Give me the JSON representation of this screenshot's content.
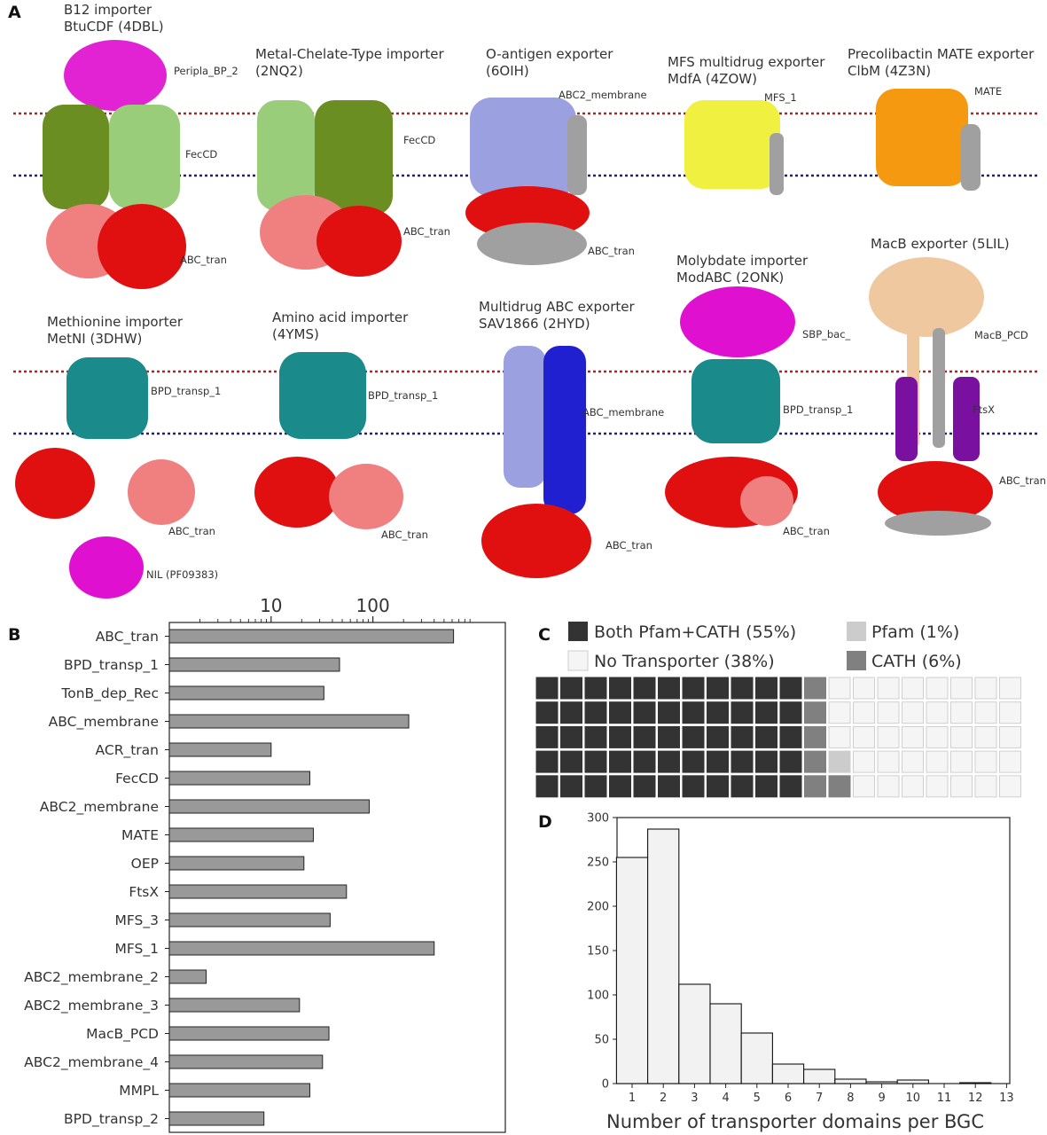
{
  "panels": {
    "a": "A",
    "b": "B",
    "c": "C",
    "d": "D"
  },
  "structures": [
    {
      "title": [
        "B12 importer",
        "BtuCDF (4DBL)"
      ],
      "domains": [
        "Peripla_BP_2",
        "FecCD",
        "ABC_tran"
      ]
    },
    {
      "title": [
        "Metal-Chelate-Type importer",
        "(2NQ2)"
      ],
      "domains": [
        "FecCD",
        "ABC_tran"
      ]
    },
    {
      "title": [
        "O-antigen exporter",
        " (6OIH)"
      ],
      "domains": [
        "ABC2_membrane",
        "ABC_tran"
      ]
    },
    {
      "title": [
        "MFS multidrug exporter",
        "MdfA (4ZOW)"
      ],
      "domains": [
        "MFS_1"
      ]
    },
    {
      "title": [
        "Precolibactin MATE exporter",
        "ClbM (4Z3N)"
      ],
      "domains": [
        "MATE"
      ]
    },
    {
      "title": [
        "Methionine importer",
        "MetNI (3DHW)"
      ],
      "domains": [
        "BPD_transp_1",
        "ABC_tran",
        "NIL (PF09383)"
      ]
    },
    {
      "title": [
        "Amino acid importer",
        " (4YMS)"
      ],
      "domains": [
        "BPD_transp_1",
        "ABC_tran"
      ]
    },
    {
      "title": [
        "Multidrug ABC exporter",
        "SAV1866 (2HYD)"
      ],
      "domains": [
        "ABC_membrane",
        "ABC_tran"
      ]
    },
    {
      "title": [
        "Molybdate importer",
        "ModABC (2ONK)"
      ],
      "domains": [
        "SBP_bac_",
        "BPD_transp_1",
        "ABC_tran"
      ]
    },
    {
      "title": [
        "MacB exporter  (5LIL)"
      ],
      "domains": [
        "MacB_PCD",
        "FtsX",
        "ABC_tran"
      ]
    }
  ],
  "colors": {
    "red_line": "#b22222",
    "blue_line": "#1a237e",
    "magenta": "#e010d0",
    "green": "#6b8e23",
    "lightgreen": "#9acd7a",
    "salmon": "#f08080",
    "red": "#e01010",
    "periwinkle": "#9aa0e0",
    "yellow": "#f0f040",
    "orange": "#f59a10",
    "teal": "#1a8a8a",
    "blue": "#2020d0",
    "purple": "#7a10a0",
    "wheat": "#f0c8a0",
    "grey": "#a0a0a0",
    "bar": "#999999",
    "hist": "#f2f2f2",
    "waffle_both": "#333333",
    "waffle_pfam": "#cccccc",
    "waffle_cath": "#808080",
    "waffle_none": "#f5f5f5"
  },
  "chart_data": [
    {
      "type": "bar",
      "orientation": "horizontal",
      "xscale": "log",
      "xticks": [
        "10",
        "100"
      ],
      "xlim": [
        1,
        2000
      ],
      "categories": [
        "ABC_tran",
        "BPD_transp_1",
        "TonB_dep_Rec",
        "ABC_membrane",
        "ACR_tran",
        "FecCD",
        "ABC2_membrane",
        "MATE",
        "OEP",
        "FtsX",
        "MFS_3",
        "MFS_1",
        "ABC2_membrane_2",
        "ABC2_membrane_3",
        "MacB_PCD",
        "ABC2_membrane_4",
        "MMPL",
        "BPD_transp_2"
      ],
      "values": [
        620,
        47,
        33,
        225,
        10,
        24,
        92,
        26,
        21,
        55,
        38,
        400,
        2.3,
        19,
        37,
        32,
        24,
        8.5
      ]
    },
    {
      "type": "waffle",
      "legend": [
        {
          "key": "both",
          "label": "Both Pfam+CATH (55%)"
        },
        {
          "key": "pfam",
          "label": "Pfam (1%)"
        },
        {
          "key": "none",
          "label": "No Transporter (38%)"
        },
        {
          "key": "cath",
          "label": "CATH (6%)"
        }
      ],
      "rows": 5,
      "cols": 20,
      "counts": {
        "both": 55,
        "pfam": 1,
        "cath": 6,
        "none": 38
      }
    },
    {
      "type": "bar",
      "histogram": true,
      "categories": [
        "1",
        "2",
        "3",
        "4",
        "5",
        "6",
        "7",
        "8",
        "9",
        "10",
        "11",
        "12",
        "13"
      ],
      "values": [
        255,
        287,
        112,
        90,
        57,
        22,
        16,
        5,
        2,
        4,
        0,
        1,
        0
      ],
      "yticks": [
        "0",
        "50",
        "100",
        "150",
        "200",
        "250",
        "300"
      ],
      "ylim": [
        0,
        300
      ],
      "xlabel": "Number of transporter domains per BGC"
    }
  ]
}
